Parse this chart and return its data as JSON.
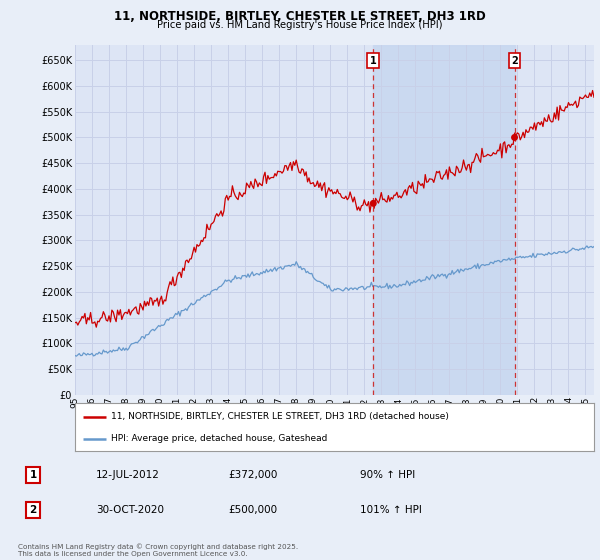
{
  "title": "11, NORTHSIDE, BIRTLEY, CHESTER LE STREET, DH3 1RD",
  "subtitle": "Price paid vs. HM Land Registry's House Price Index (HPI)",
  "legend_label_red": "11, NORTHSIDE, BIRTLEY, CHESTER LE STREET, DH3 1RD (detached house)",
  "legend_label_blue": "HPI: Average price, detached house, Gateshead",
  "annotation1_label": "1",
  "annotation1_date": "12-JUL-2012",
  "annotation1_price": "£372,000",
  "annotation1_hpi": "90% ↑ HPI",
  "annotation1_year": 2012.53,
  "annotation1_value": 372000,
  "annotation2_label": "2",
  "annotation2_date": "30-OCT-2020",
  "annotation2_price": "£500,000",
  "annotation2_hpi": "101% ↑ HPI",
  "annotation2_year": 2020.83,
  "annotation2_value": 500000,
  "yticks": [
    0,
    50000,
    100000,
    150000,
    200000,
    250000,
    300000,
    350000,
    400000,
    450000,
    500000,
    550000,
    600000,
    650000
  ],
  "ytick_labels": [
    "£0",
    "£50K",
    "£100K",
    "£150K",
    "£200K",
    "£250K",
    "£300K",
    "£350K",
    "£400K",
    "£450K",
    "£500K",
    "£550K",
    "£600K",
    "£650K"
  ],
  "ylim": [
    0,
    680000
  ],
  "xlim_start": 1995,
  "xlim_end": 2025.5,
  "background_color": "#e8eef8",
  "plot_bg_color": "#dde5f5",
  "grid_color": "#c8d0e8",
  "red_color": "#cc0000",
  "blue_color": "#6699cc",
  "shade_color": "#c8d8f0",
  "annotation_line_color": "#cc3333",
  "footer_text": "Contains HM Land Registry data © Crown copyright and database right 2025.\nThis data is licensed under the Open Government Licence v3.0.",
  "xtick_years": [
    1995,
    1996,
    1997,
    1998,
    1999,
    2000,
    2001,
    2002,
    2003,
    2004,
    2005,
    2006,
    2007,
    2008,
    2009,
    2010,
    2011,
    2012,
    2013,
    2014,
    2015,
    2016,
    2017,
    2018,
    2019,
    2020,
    2021,
    2022,
    2023,
    2024,
    2025
  ]
}
